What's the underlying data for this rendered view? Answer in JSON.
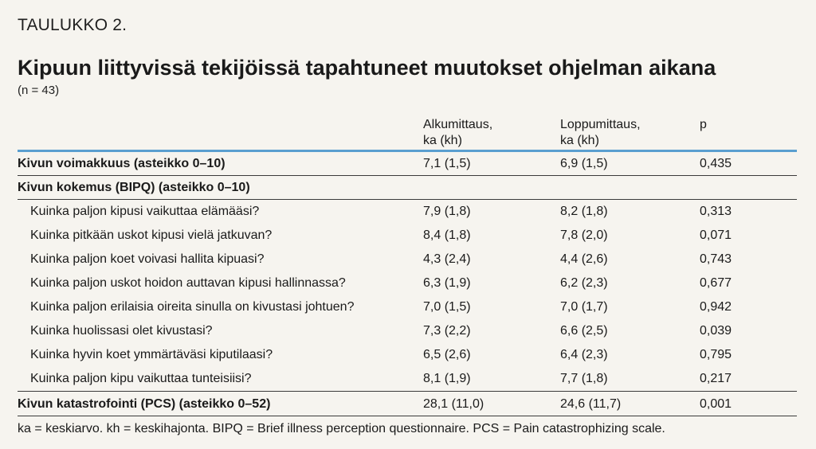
{
  "kicker": "TAULUKKO 2.",
  "title": "Kipuun liittyvissä tekijöissä tapahtuneet muutokset ohjelman aikana",
  "subtitle": "(n = 43)",
  "columns": {
    "start": [
      "Alkumittaus,",
      "ka (kh)"
    ],
    "end": [
      "Loppumittaus,",
      "ka (kh)"
    ],
    "p": "p"
  },
  "rows": [
    {
      "label": "Kivun voimakkuus (asteikko 0–10)",
      "start": "7,1 (1,5)",
      "end": "6,9 (1,5)",
      "p": "0,435"
    },
    {
      "label": "Kivun kokemus (BIPQ) (asteikko 0–10)",
      "start": "",
      "end": "",
      "p": ""
    },
    {
      "label": "Kuinka paljon kipusi vaikuttaa elämääsi?",
      "start": "7,9 (1,8)",
      "end": "8,2 (1,8)",
      "p": "0,313"
    },
    {
      "label": "Kuinka pitkään uskot kipusi vielä jatkuvan?",
      "start": "8,4 (1,8)",
      "end": "7,8 (2,0)",
      "p": "0,071"
    },
    {
      "label": "Kuinka paljon koet voivasi hallita kipuasi?",
      "start": "4,3 (2,4)",
      "end": "4,4 (2,6)",
      "p": "0,743"
    },
    {
      "label": "Kuinka paljon uskot hoidon auttavan kipusi hallinnassa?",
      "start": "6,3 (1,9)",
      "end": "6,2 (2,3)",
      "p": "0,677"
    },
    {
      "label": "Kuinka paljon erilaisia oireita sinulla on kivustasi johtuen?",
      "start": "7,0 (1,5)",
      "end": "7,0 (1,7)",
      "p": "0,942"
    },
    {
      "label": "Kuinka huolissasi olet kivustasi?",
      "start": "7,3 (2,2)",
      "end": "6,6 (2,5)",
      "p": "0,039"
    },
    {
      "label": "Kuinka hyvin koet ymmärtäväsi kiputilaasi?",
      "start": "6,5 (2,6)",
      "end": "6,4 (2,3)",
      "p": "0,795"
    },
    {
      "label": "Kuinka paljon kipu vaikuttaa tunteisiisi?",
      "start": "8,1 (1,9)",
      "end": "7,7 (1,8)",
      "p": "0,217"
    },
    {
      "label": "Kivun katastrofointi (PCS) (asteikko 0–52)",
      "start": "28,1 (11,0)",
      "end": "24,6 (11,7)",
      "p": "0,001"
    }
  ],
  "footnote": "ka = keskiarvo. kh = keskihajonta. BIPQ = Brief illness perception questionnaire. PCS = Pain catastrophizing scale."
}
